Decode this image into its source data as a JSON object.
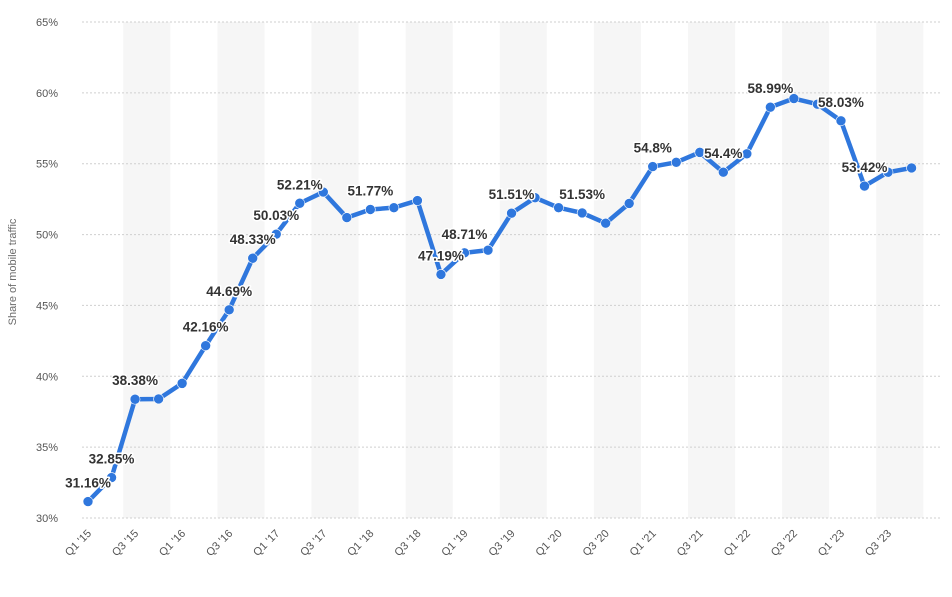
{
  "chart_data": {
    "type": "line",
    "ylabel": "Share of mobile traffic",
    "xlabel": "",
    "ylim": [
      30,
      65
    ],
    "y_ticks": [
      "30%",
      "35%",
      "40%",
      "45%",
      "50%",
      "55%",
      "60%",
      "65%"
    ],
    "grid": "horizontal dotted",
    "line_color": "#2f77dd",
    "band_color": "#f6f6f6",
    "categories": [
      "Q1 '15",
      "Q2 '15",
      "Q3 '15",
      "Q4 '15",
      "Q1 '16",
      "Q2 '16",
      "Q3 '16",
      "Q4 '16",
      "Q1 '17",
      "Q2 '17",
      "Q3 '17",
      "Q4 '17",
      "Q1 '18",
      "Q2 '18",
      "Q3 '18",
      "Q4 '18",
      "Q1 '19",
      "Q2 '19",
      "Q3 '19",
      "Q4 '19",
      "Q1 '20",
      "Q2 '20",
      "Q3 '20",
      "Q4 '20",
      "Q1 '21",
      "Q2 '21",
      "Q3 '21",
      "Q4 '21",
      "Q1 '22",
      "Q2 '22",
      "Q3 '22",
      "Q4 '22",
      "Q1 '23",
      "Q2 '23",
      "Q3 '23",
      "Q4 '23"
    ],
    "x_tick_labels": [
      "Q1 '15",
      "Q3 '15",
      "Q1 '16",
      "Q3 '16",
      "Q1 '17",
      "Q3 '17",
      "Q1 '18",
      "Q3 '18",
      "Q1 '19",
      "Q3 '19",
      "Q1 '20",
      "Q3 '20",
      "Q1 '21",
      "Q3 '21",
      "Q1 '22",
      "Q3 '22",
      "Q1 '23",
      "Q3 '23"
    ],
    "series": [
      {
        "values": [
          31.16,
          32.85,
          38.38,
          38.4,
          39.5,
          42.16,
          44.69,
          48.33,
          50.03,
          52.21,
          53.0,
          51.2,
          51.77,
          51.9,
          52.4,
          47.19,
          48.71,
          48.9,
          51.51,
          52.6,
          51.9,
          51.53,
          50.8,
          52.2,
          54.8,
          55.1,
          55.8,
          54.4,
          55.7,
          58.99,
          59.6,
          59.2,
          58.03,
          53.42,
          54.4,
          54.7
        ],
        "labels": [
          "31.16%",
          "32.85%",
          "38.38%",
          "",
          "",
          "42.16%",
          "44.69%",
          "48.33%",
          "50.03%",
          "52.21%",
          "",
          "",
          "51.77%",
          "",
          "",
          "47.19%",
          "48.71%",
          "",
          "51.51%",
          "",
          "",
          "51.53%",
          "",
          "",
          "54.8%",
          "",
          "",
          "54.4%",
          "",
          "58.99%",
          "",
          "",
          "58.03%",
          "53.42%",
          "",
          ""
        ]
      }
    ]
  }
}
